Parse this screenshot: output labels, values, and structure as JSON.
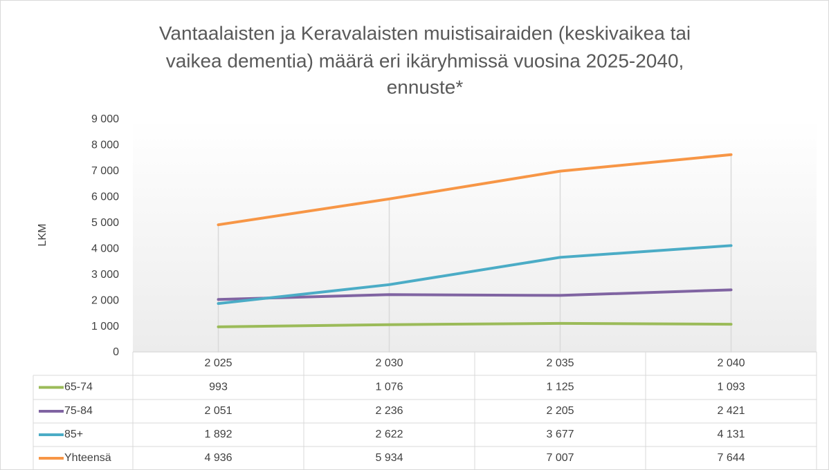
{
  "chart_data": {
    "type": "line",
    "title": [
      "Vantaalaisten ja Keravalaisten muistisairaiden (keskivaikea tai",
      "vaikea dementia) määrä eri ikäryhmissä vuosina 2025-2040,",
      "ennuste*"
    ],
    "y_label": "LKM",
    "categories": [
      "2 025",
      "2 030",
      "2 035",
      "2 040"
    ],
    "series": [
      {
        "name": "65-74",
        "color": "#9bbb59",
        "values": [
          993,
          1076,
          1125,
          1093
        ],
        "value_labels": [
          "993",
          "1 076",
          "1 125",
          "1 093"
        ]
      },
      {
        "name": "75-84",
        "color": "#8064a2",
        "values": [
          2051,
          2236,
          2205,
          2421
        ],
        "value_labels": [
          "2 051",
          "2 236",
          "2 205",
          "2 421"
        ]
      },
      {
        "name": "85+",
        "color": "#4bacc6",
        "values": [
          1892,
          2622,
          3677,
          4131
        ],
        "value_labels": [
          "1 892",
          "2 622",
          "3 677",
          "4 131"
        ]
      },
      {
        "name": "Yhteensä",
        "color": "#f79646",
        "values": [
          4936,
          5934,
          7007,
          7644
        ],
        "value_labels": [
          "4 936",
          "5 934",
          "7 007",
          "7 644"
        ]
      }
    ],
    "ylim": [
      0,
      9000
    ],
    "yticks": [
      0,
      {
        "value": 1000,
        "label": "1 000"
      },
      {
        "value": 2000,
        "label": "2 000"
      },
      {
        "value": 3000,
        "label": "3 000"
      },
      {
        "value": 4000,
        "label": "4 000"
      },
      {
        "value": 5000,
        "label": "5 000"
      },
      {
        "value": 6000,
        "label": "6 000"
      },
      {
        "value": 7000,
        "label": "7 000"
      },
      {
        "value": 8000,
        "label": "8 000"
      },
      {
        "value": 9000,
        "label": "9 000"
      }
    ]
  }
}
